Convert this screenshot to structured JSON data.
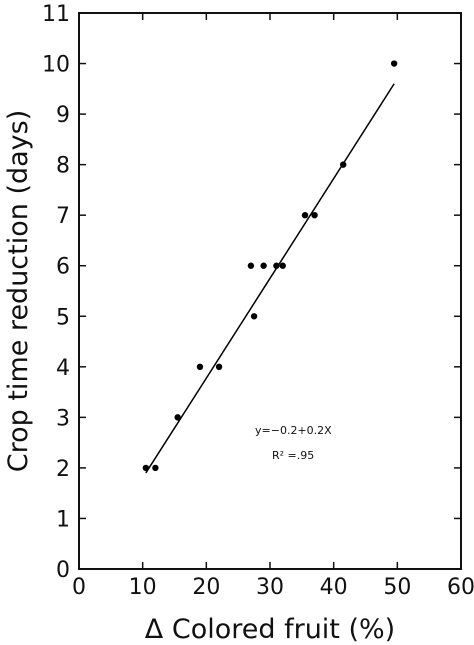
{
  "chart_data": {
    "type": "scatter",
    "xlabel": "Δ Colored fruit (%)",
    "ylabel": "Crop time reduction (days)",
    "xlim": [
      0,
      60
    ],
    "ylim": [
      0,
      11
    ],
    "xticks": [
      0,
      10,
      20,
      30,
      40,
      50,
      60
    ],
    "yticks": [
      0,
      1,
      2,
      3,
      4,
      5,
      6,
      7,
      8,
      9,
      10,
      11
    ],
    "grid": false,
    "points": [
      {
        "x": 10.5,
        "y": 2
      },
      {
        "x": 12,
        "y": 2
      },
      {
        "x": 15.5,
        "y": 3
      },
      {
        "x": 19,
        "y": 4
      },
      {
        "x": 22,
        "y": 4
      },
      {
        "x": 27,
        "y": 6
      },
      {
        "x": 27.5,
        "y": 5
      },
      {
        "x": 29,
        "y": 6
      },
      {
        "x": 31,
        "y": 6
      },
      {
        "x": 32,
        "y": 6
      },
      {
        "x": 35.5,
        "y": 7
      },
      {
        "x": 37,
        "y": 7
      },
      {
        "x": 41.5,
        "y": 8
      },
      {
        "x": 49.5,
        "y": 10
      }
    ],
    "fit_line": {
      "x": [
        10.5,
        49.5
      ],
      "y": [
        1.9,
        9.6
      ]
    },
    "equation": "y=−0.2+0.2X",
    "r_squared": "R² =.95",
    "point_color": "#000000",
    "line_color": "#000000"
  }
}
